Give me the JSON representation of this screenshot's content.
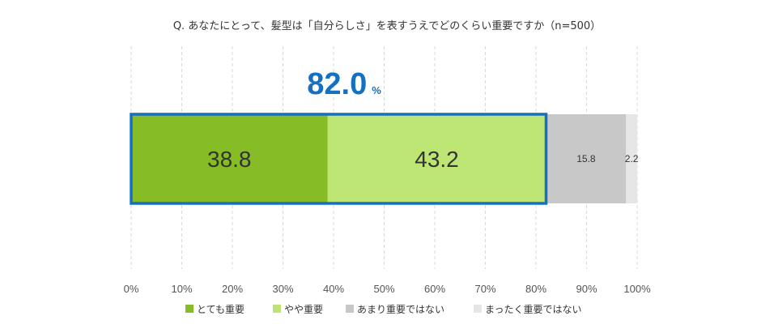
{
  "chart_data": {
    "type": "bar",
    "orientation": "horizontal-stacked",
    "title": "Q. あなたにとって、髪型は「自分らしさ」を表すうえでどのくらい重要ですか（n=500）",
    "xlim": [
      0,
      100
    ],
    "x_ticks": [
      "0%",
      "10%",
      "20%",
      "30%",
      "40%",
      "50%",
      "60%",
      "70%",
      "80%",
      "90%",
      "100%"
    ],
    "grid": "vertical-dashed",
    "series": [
      {
        "name": "とても重要",
        "value": 38.8,
        "label": "38.8",
        "color": "#86bc25"
      },
      {
        "name": "やや重要",
        "value": 43.2,
        "label": "43.2",
        "color": "#bde574"
      },
      {
        "name": "あまり重要ではない",
        "value": 15.8,
        "label": "15.8",
        "color": "#c8c8c8"
      },
      {
        "name": "まったく重要ではない",
        "value": 2.2,
        "label": "2.2",
        "color": "#e6e6e6"
      }
    ],
    "callout": {
      "value": "82.0",
      "unit": "%",
      "color": "#1570c0"
    },
    "highlight_color": "#1570c0",
    "legend": "bottom"
  }
}
